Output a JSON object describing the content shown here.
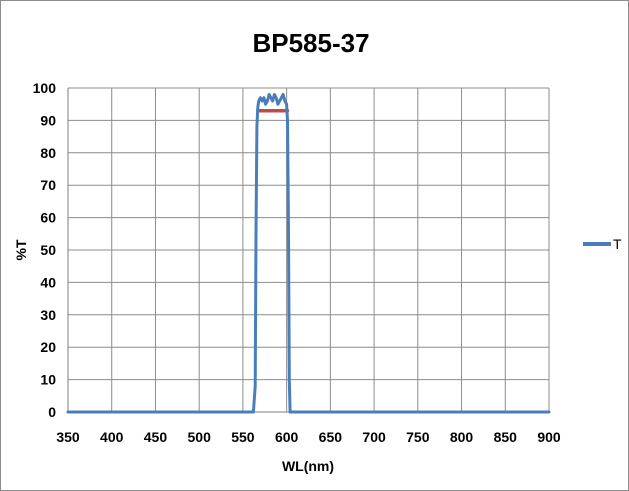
{
  "chart_data": {
    "type": "line",
    "title": "BP585-37",
    "xlabel": "WL(nm)",
    "ylabel": "%T",
    "xlim": [
      350,
      900
    ],
    "ylim": [
      0,
      100
    ],
    "xticks": [
      350,
      400,
      450,
      500,
      550,
      600,
      650,
      700,
      750,
      800,
      850,
      900
    ],
    "yticks": [
      0,
      10,
      20,
      30,
      40,
      50,
      60,
      70,
      80,
      90,
      100
    ],
    "grid": true,
    "legend_position": "right",
    "series": [
      {
        "name": "T",
        "color": "#4a7ebb",
        "x": [
          350,
          550,
          562,
          564,
          565,
          566,
          567,
          568,
          570,
          572,
          574,
          576,
          578,
          580,
          582,
          584,
          586,
          588,
          590,
          592,
          594,
          596,
          598,
          600,
          601,
          602,
          603,
          604,
          606,
          650,
          700,
          750,
          800,
          850,
          900
        ],
        "y": [
          0,
          0,
          0,
          8,
          55,
          88,
          94,
          96,
          97,
          96,
          97,
          95,
          96,
          98,
          97,
          96,
          98,
          97,
          95,
          96,
          97,
          98,
          96,
          95,
          90,
          60,
          10,
          0,
          0,
          0,
          0,
          0,
          0,
          0,
          0
        ]
      },
      {
        "name": "",
        "color": "#be4b48",
        "x": [
          567,
          601
        ],
        "y": [
          93,
          93
        ]
      }
    ]
  }
}
